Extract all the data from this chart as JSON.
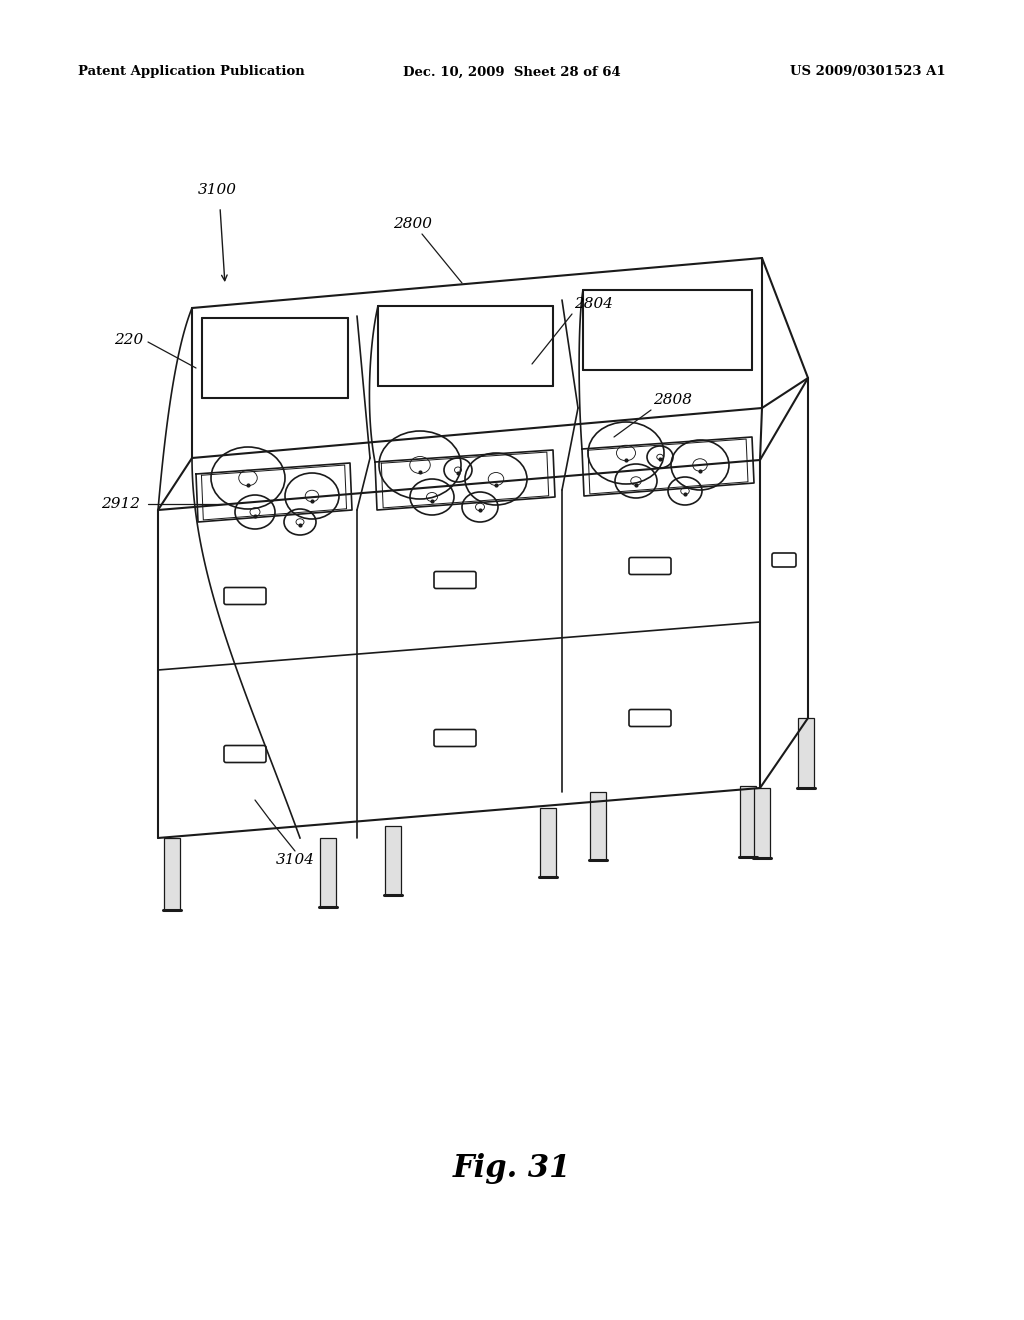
{
  "background_color": "#ffffff",
  "header_left": "Patent Application Publication",
  "header_center": "Dec. 10, 2009  Sheet 28 of 64",
  "header_right": "US 2009/0301523 A1",
  "figure_label": "Fig. 31",
  "line_color": "#1a1a1a"
}
